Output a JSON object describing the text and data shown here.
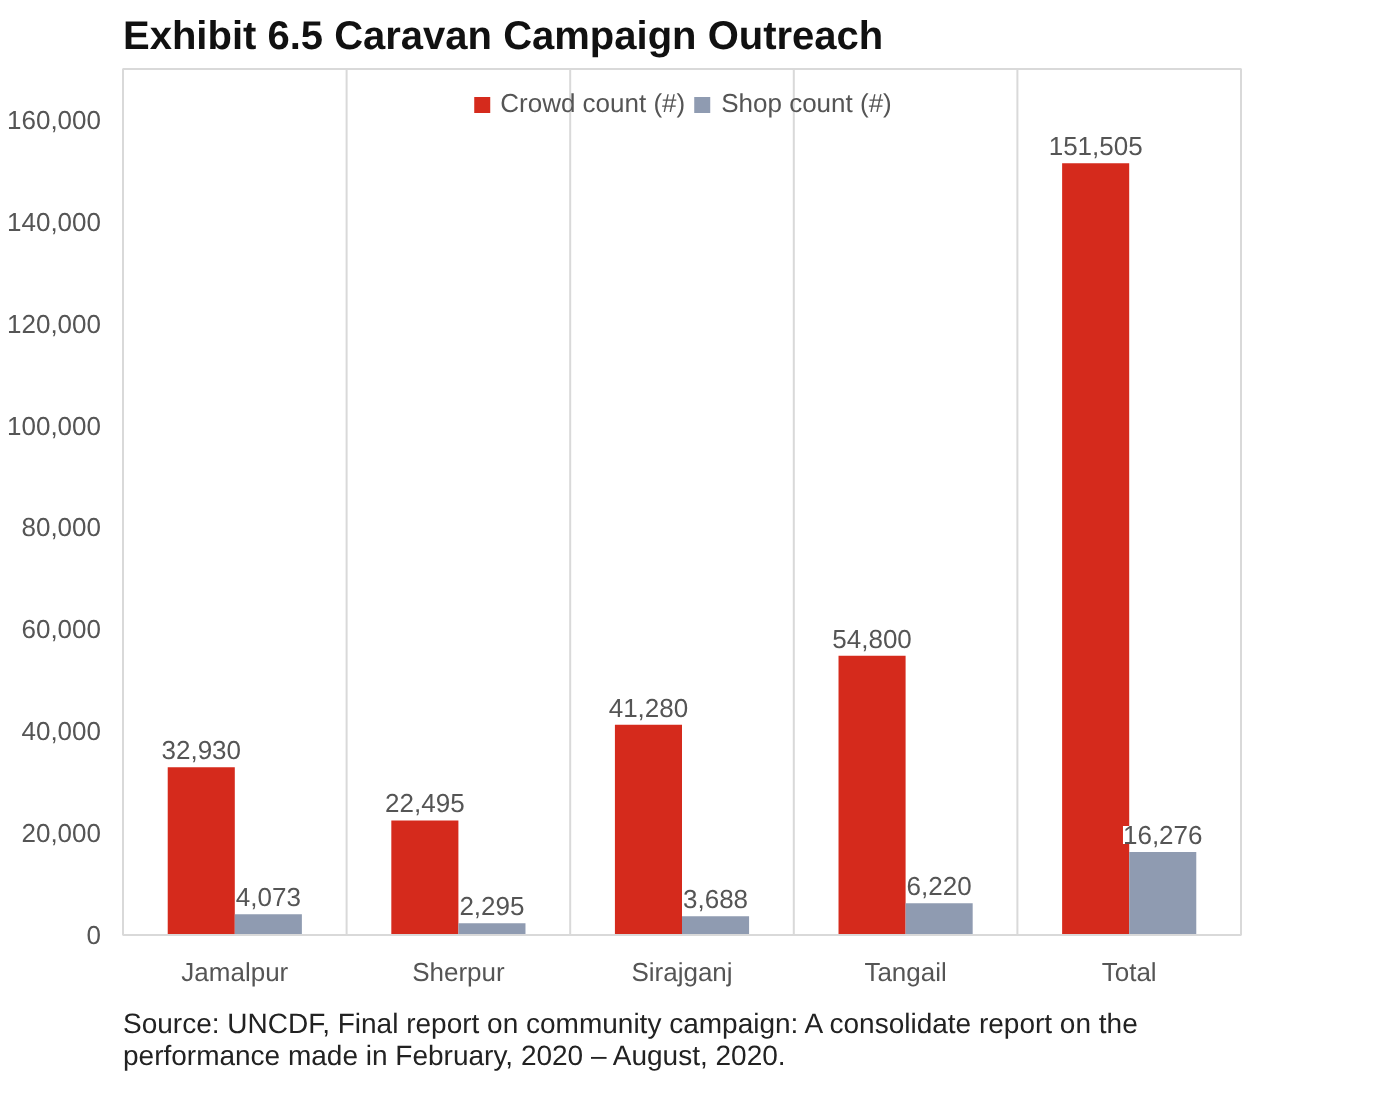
{
  "chart_data": {
    "type": "bar",
    "title": "Exhibit 6.5 Caravan Campaign Outreach",
    "categories": [
      "Jamalpur",
      "Sherpur",
      "Sirajganj",
      "Tangail",
      "Total"
    ],
    "series": [
      {
        "name": "Crowd count (#)",
        "color": "#d52a1c",
        "values": [
          32930,
          22495,
          41280,
          54800,
          151505
        ],
        "value_labels": [
          "32,930",
          "22,495",
          "41,280",
          "54,800",
          "151,505"
        ]
      },
      {
        "name": "Shop count (#)",
        "color": "#8f9bb1",
        "values": [
          4073,
          2295,
          3688,
          6220,
          16276
        ],
        "value_labels": [
          "4,073",
          "2,295",
          "3,688",
          "6,220",
          "16,276"
        ]
      }
    ],
    "ylim": [
      0,
      170000
    ],
    "yticks": [
      {
        "value": 0,
        "label": "0"
      },
      {
        "value": 20000,
        "label": "20,000"
      },
      {
        "value": 40000,
        "label": "40,000"
      },
      {
        "value": 60000,
        "label": "60,000"
      },
      {
        "value": 80000,
        "label": "80,000"
      },
      {
        "value": 100000,
        "label": "100,000"
      },
      {
        "value": 120000,
        "label": "120,000"
      },
      {
        "value": 140000,
        "label": "140,000"
      },
      {
        "value": 160000,
        "label": "160,000"
      }
    ],
    "grid": "x",
    "legend": "top",
    "annotations": [
      "Source: UNCDF, Final report on community campaign: A consolidate report on the performance made in February, 2020 – August, 2020."
    ]
  }
}
